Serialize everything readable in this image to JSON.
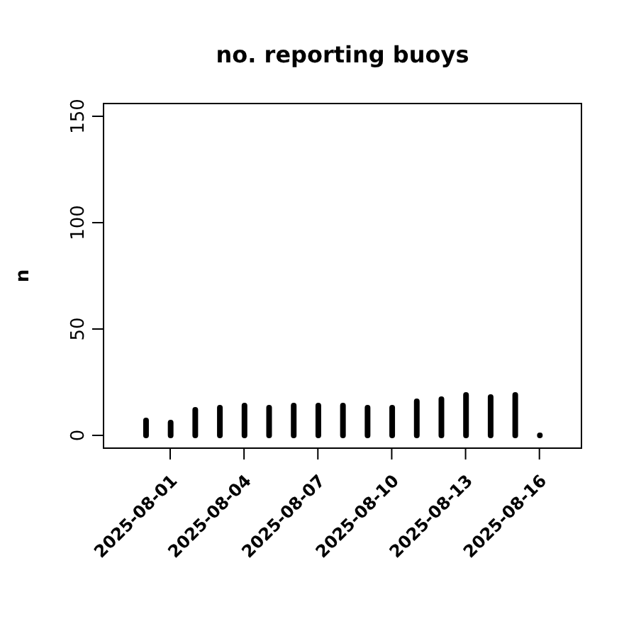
{
  "chart_data": {
    "type": "bar",
    "title": "no. reporting buoys",
    "ylabel": "n",
    "x": [
      "2025-07-31",
      "2025-08-01",
      "2025-08-02",
      "2025-08-03",
      "2025-08-04",
      "2025-08-05",
      "2025-08-06",
      "2025-08-07",
      "2025-08-08",
      "2025-08-09",
      "2025-08-10",
      "2025-08-11",
      "2025-08-12",
      "2025-08-13",
      "2025-08-14",
      "2025-08-15",
      "2025-08-16"
    ],
    "series": [
      {
        "color": "#000000",
        "values": [
          7,
          6,
          12,
          13,
          14,
          13,
          14,
          14,
          14,
          13,
          13,
          16,
          17,
          19,
          18,
          19,
          0
        ]
      }
    ],
    "xlim": [
      "2025-07-29T07:00",
      "2025-08-17T17:00"
    ],
    "xticks": [
      "2025-08-01",
      "2025-08-04",
      "2025-08-07",
      "2025-08-10",
      "2025-08-13",
      "2025-08-16"
    ],
    "ylim": [
      -6,
      156
    ],
    "yticks": [
      0,
      50,
      100,
      150
    ],
    "grid": false
  }
}
